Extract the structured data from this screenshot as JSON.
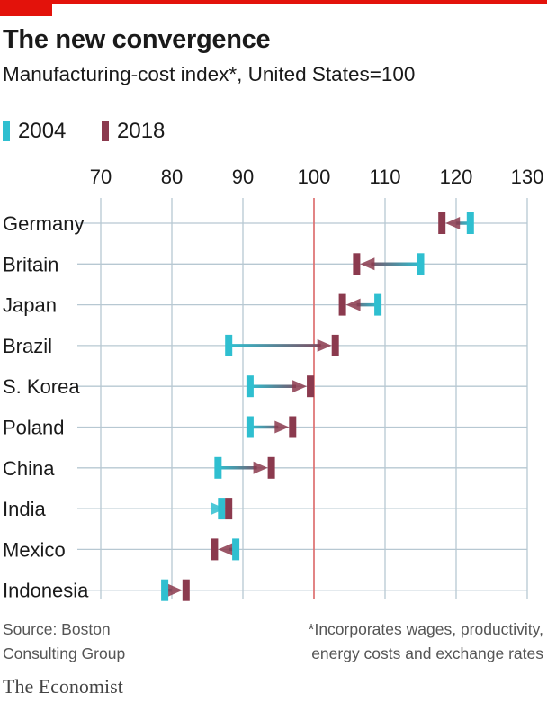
{
  "header": {
    "title": "The new convergence",
    "subtitle": "Manufacturing-cost index*, United States=100"
  },
  "legend": {
    "series_2004": "2004",
    "series_2018": "2018"
  },
  "colors": {
    "series_2004": "#2fbfd0",
    "series_2018": "#8b3a4e",
    "reference_line": "#e06a6a",
    "grid": "#b7c8d2",
    "accent": "#e3120b"
  },
  "chart_data": {
    "type": "dumbbell",
    "title": "The new convergence",
    "subtitle": "Manufacturing-cost index*, United States=100",
    "xlim": [
      70,
      130
    ],
    "xticks": [
      70,
      80,
      90,
      100,
      110,
      120,
      130
    ],
    "tick_labels": [
      "70",
      "80",
      "90",
      "100",
      "110",
      "120",
      "130"
    ],
    "reference_value": 100,
    "series_names": [
      "2004",
      "2018"
    ],
    "categories": [
      "Germany",
      "Britain",
      "Japan",
      "Brazil",
      "S. Korea",
      "Poland",
      "China",
      "India",
      "Mexico",
      "Indonesia"
    ],
    "values_2004": [
      122,
      115,
      109,
      88,
      91,
      91,
      86.5,
      87,
      89,
      79
    ],
    "values_2018": [
      118,
      106,
      104,
      103,
      99.5,
      97,
      94,
      88,
      86,
      82
    ]
  },
  "footer": {
    "source_line1": "Source: Boston",
    "source_line2": "Consulting Group",
    "note_line1": "*Incorporates wages, productivity,",
    "note_line2": "energy costs and exchange rates",
    "brand": "The Economist"
  }
}
